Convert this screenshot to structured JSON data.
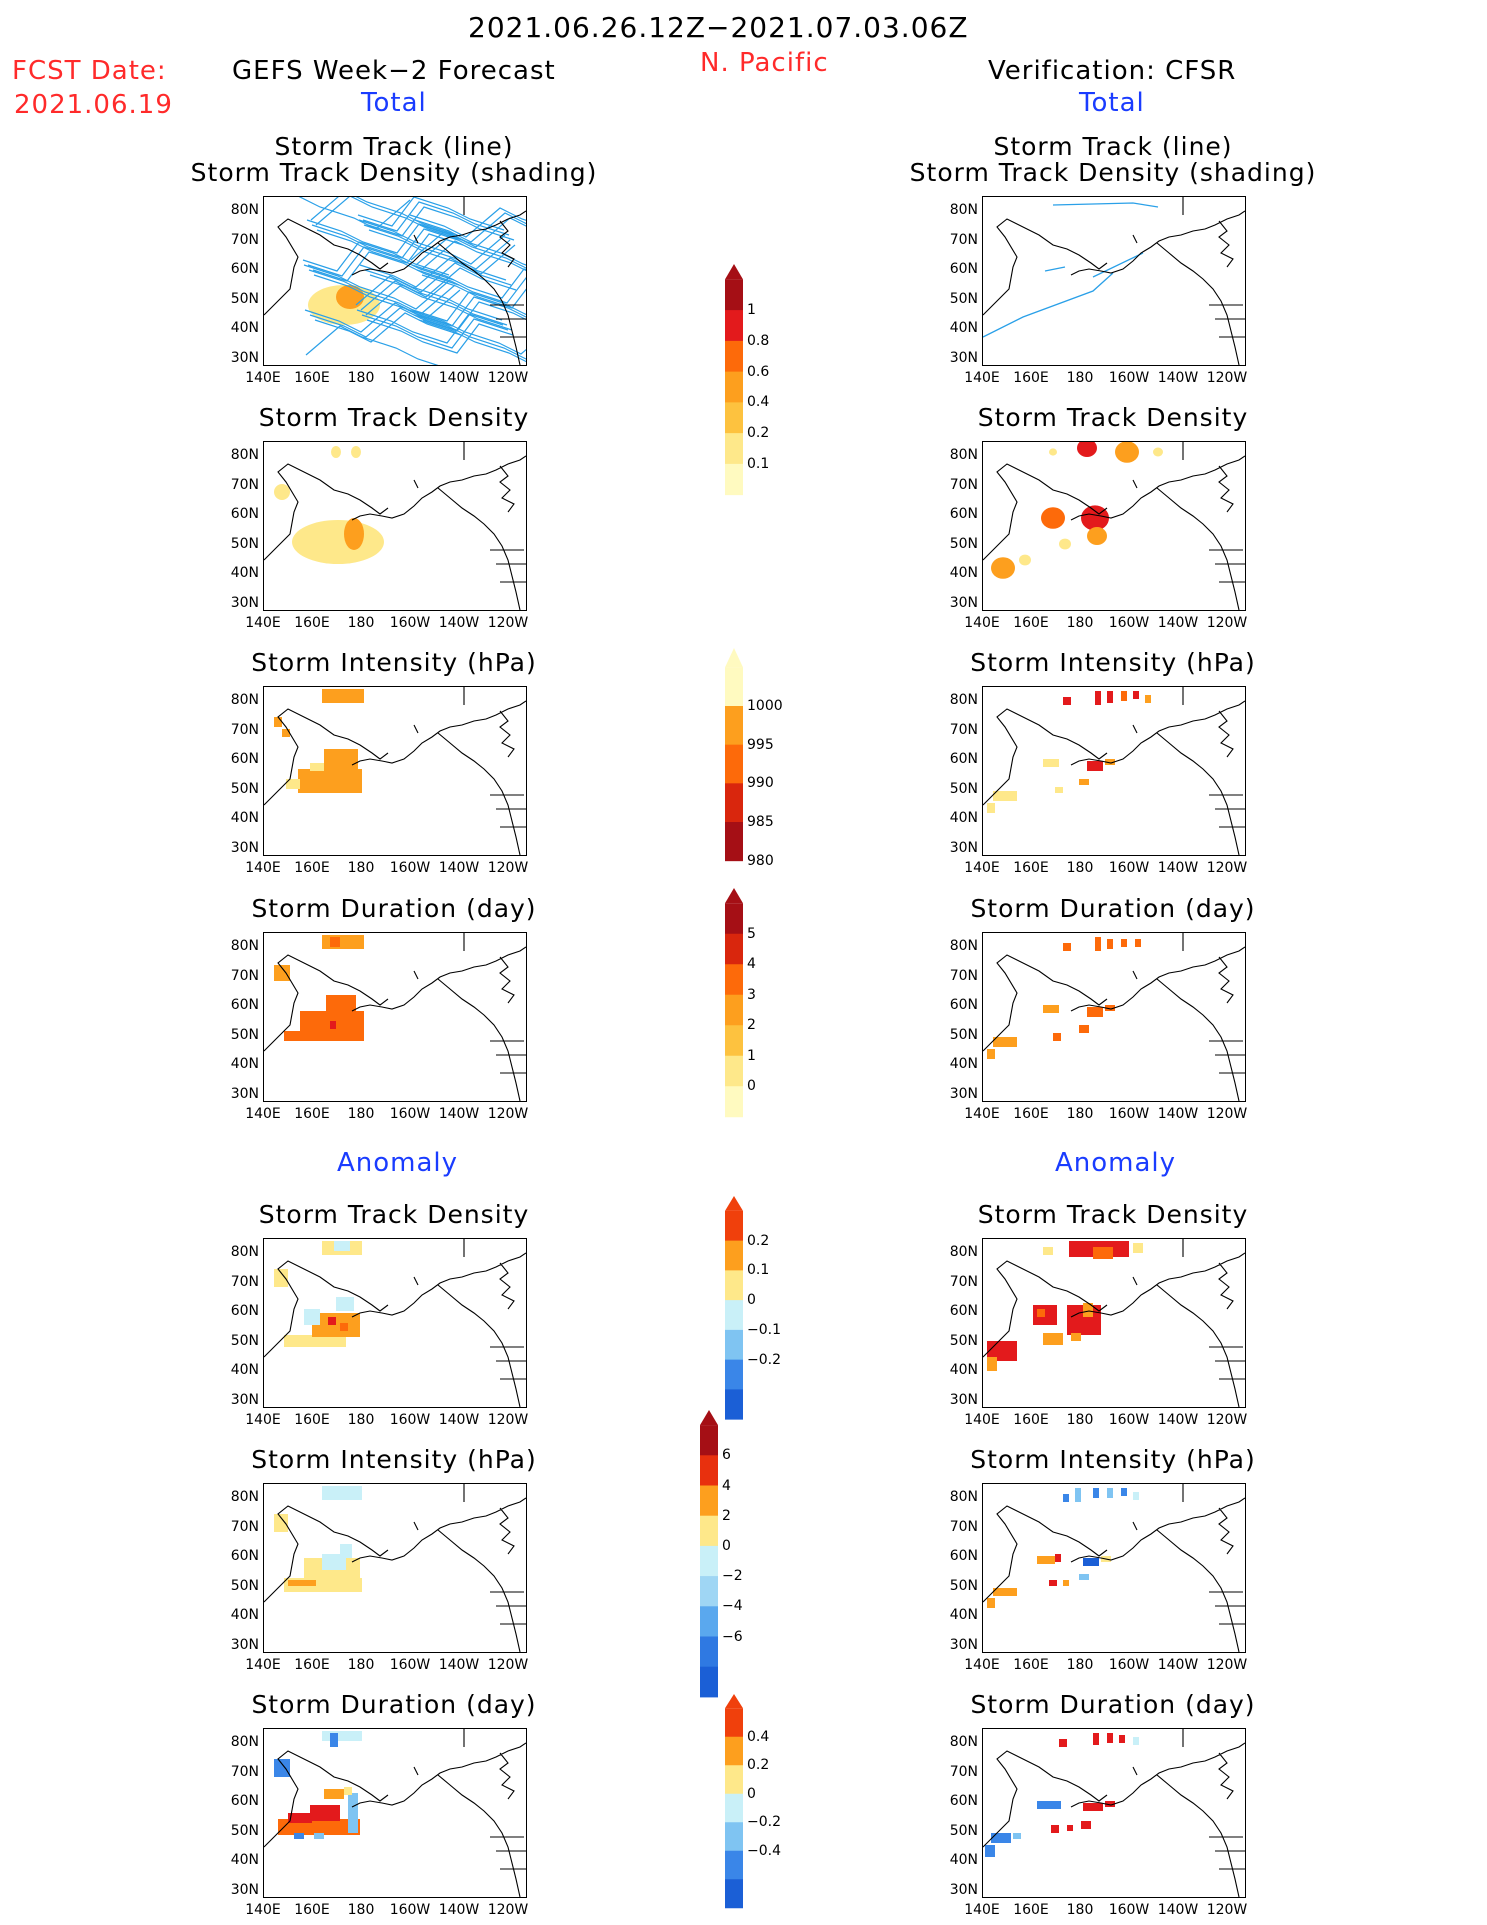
{
  "header": {
    "period": "2021.06.26.12Z−2021.07.03.06Z",
    "fcst_label": "FCST Date:",
    "fcst_date": "2021.06.19",
    "left_title": "GEFS Week−2 Forecast",
    "region": "N. Pacific",
    "right_title": "Verification: CFSR",
    "total_label": "Total",
    "anomaly_label": "Anomaly"
  },
  "axes": {
    "lat_labels": [
      "80N",
      "70N",
      "60N",
      "50N",
      "40N",
      "30N"
    ],
    "lon_labels": [
      "140E",
      "160E",
      "180",
      "160W",
      "140W",
      "120W"
    ]
  },
  "panels": {
    "track": [
      "Storm Track (line)",
      "Storm Track Density (shading)"
    ],
    "density": "Storm Track Density",
    "intensity": "Storm Intensity (hPa)",
    "duration": "Storm Duration (day)"
  },
  "colorbars": {
    "density_total": {
      "labels": [
        "1",
        "0.8",
        "0.6",
        "0.4",
        "0.2",
        "0.1"
      ],
      "colors": [
        "#a50f15",
        "#e31a1c",
        "#fd6a0a",
        "#fd9f1e",
        "#fdc23f",
        "#fee88a",
        "#fffac0"
      ]
    },
    "intensity_total": {
      "labels": [
        "1000",
        "995",
        "990",
        "985",
        "980"
      ],
      "colors": [
        "#fffac0",
        "#fd9f1e",
        "#fd6a0a",
        "#d9260d",
        "#a50f15"
      ]
    },
    "duration_total": {
      "labels": [
        "5",
        "4",
        "3",
        "2",
        "1",
        "0"
      ],
      "colors": [
        "#a50f15",
        "#d9260d",
        "#fd6a0a",
        "#fd9f1e",
        "#fdc23f",
        "#fee88a",
        "#fffac0"
      ]
    },
    "density_anom": {
      "labels": [
        "0.2",
        "0.1",
        "0",
        "−0.1",
        "−0.2"
      ],
      "colors": [
        "#f0400c",
        "#fd9f1e",
        "#fee88a",
        "#c9f0f8",
        "#7fc4f2",
        "#3a86e8",
        "#1b5fd6"
      ]
    },
    "intensity_anom": {
      "labels": [
        "6",
        "4",
        "2",
        "0",
        "−2",
        "−4",
        "−6"
      ],
      "colors": [
        "#a50f15",
        "#e8300e",
        "#fd9f1e",
        "#fee88a",
        "#c9f0f8",
        "#9fd6f4",
        "#5aa8ee",
        "#2f79e2",
        "#1b5fd6"
      ]
    },
    "duration_anom": {
      "labels": [
        "0.4",
        "0.2",
        "0",
        "−0.2",
        "−0.4"
      ],
      "colors": [
        "#f0400c",
        "#fd9f1e",
        "#fee88a",
        "#c9f0f8",
        "#7fc4f2",
        "#3a86e8",
        "#1b5fd6"
      ]
    }
  }
}
